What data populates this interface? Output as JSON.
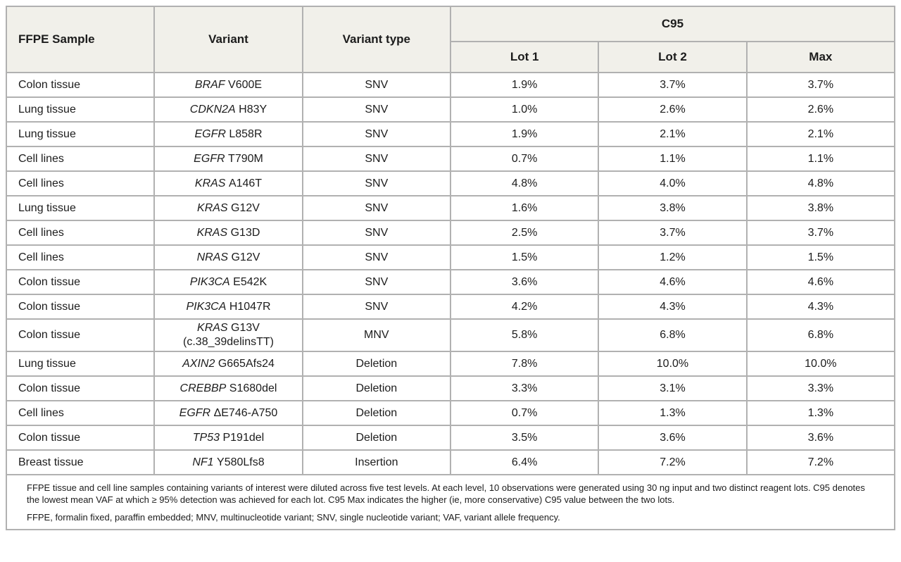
{
  "colors": {
    "header_background": "#f1f0ea",
    "border_inner": "#b1b1b1",
    "border_outer": "#8f8f8f",
    "text": "#1c1c1c"
  },
  "table": {
    "headers": {
      "ffpe_sample": "FFPE Sample",
      "variant": "Variant",
      "variant_type": "Variant type",
      "c95_group": "C95",
      "lot1": "Lot 1",
      "lot2": "Lot 2",
      "max": "Max"
    },
    "rows": [
      {
        "sample": "Colon tissue",
        "gene": "BRAF",
        "mutation": "V600E",
        "type": "SNV",
        "lot1": "1.9%",
        "lot2": "3.7%",
        "max": "3.7%"
      },
      {
        "sample": "Lung tissue",
        "gene": "CDKN2A",
        "mutation": "H83Y",
        "type": "SNV",
        "lot1": "1.0%",
        "lot2": "2.6%",
        "max": "2.6%"
      },
      {
        "sample": "Lung tissue",
        "gene": "EGFR",
        "mutation": "L858R",
        "type": "SNV",
        "lot1": "1.9%",
        "lot2": "2.1%",
        "max": "2.1%"
      },
      {
        "sample": "Cell lines",
        "gene": "EGFR",
        "mutation": "T790M",
        "type": "SNV",
        "lot1": "0.7%",
        "lot2": "1.1%",
        "max": "1.1%"
      },
      {
        "sample": "Cell lines",
        "gene": "KRAS",
        "mutation": "A146T",
        "type": "SNV",
        "lot1": "4.8%",
        "lot2": "4.0%",
        "max": "4.8%"
      },
      {
        "sample": "Lung tissue",
        "gene": "KRAS",
        "mutation": "G12V",
        "type": "SNV",
        "lot1": "1.6%",
        "lot2": "3.8%",
        "max": "3.8%"
      },
      {
        "sample": "Cell lines",
        "gene": "KRAS",
        "mutation": "G13D",
        "type": "SNV",
        "lot1": "2.5%",
        "lot2": "3.7%",
        "max": "3.7%"
      },
      {
        "sample": "Cell lines",
        "gene": "NRAS",
        "mutation": "G12V",
        "type": "SNV",
        "lot1": "1.5%",
        "lot2": "1.2%",
        "max": "1.5%"
      },
      {
        "sample": "Colon tissue",
        "gene": "PIK3CA",
        "mutation": "E542K",
        "type": "SNV",
        "lot1": "3.6%",
        "lot2": "4.6%",
        "max": "4.6%"
      },
      {
        "sample": "Colon tissue",
        "gene": "PIK3CA",
        "mutation": "H1047R",
        "type": "SNV",
        "lot1": "4.2%",
        "lot2": "4.3%",
        "max": "4.3%"
      },
      {
        "sample": "Colon tissue",
        "gene": "KRAS",
        "mutation": "G13V",
        "mutation_line2": "(c.38_39delinsTT)",
        "type": "MNV",
        "lot1": "5.8%",
        "lot2": "6.8%",
        "max": "6.8%"
      },
      {
        "sample": "Lung tissue",
        "gene": "AXIN2",
        "mutation": "G665Afs24",
        "type": "Deletion",
        "lot1": "7.8%",
        "lot2": "10.0%",
        "max": "10.0%"
      },
      {
        "sample": "Colon tissue",
        "gene": "CREBBP",
        "mutation": "S1680del",
        "type": "Deletion",
        "lot1": "3.3%",
        "lot2": "3.1%",
        "max": "3.3%"
      },
      {
        "sample": "Cell lines",
        "gene": "EGFR",
        "mutation": "ΔE746-A750",
        "type": "Deletion",
        "lot1": "0.7%",
        "lot2": "1.3%",
        "max": "1.3%"
      },
      {
        "sample": "Colon tissue",
        "gene": "TP53",
        "mutation": "P191del",
        "type": "Deletion",
        "lot1": "3.5%",
        "lot2": "3.6%",
        "max": "3.6%"
      },
      {
        "sample": "Breast tissue",
        "gene": "NF1",
        "mutation": "Y580Lfs8",
        "type": "Insertion",
        "lot1": "6.4%",
        "lot2": "7.2%",
        "max": "7.2%"
      }
    ],
    "footnotes": [
      "FFPE tissue and cell line samples containing variants of interest were diluted across five test levels. At each level, 10 observations were generated using 30 ng input and two distinct reagent lots. C95 denotes the lowest mean VAF at which ≥ 95% detection was achieved for each lot. C95 Max indicates the higher (ie, more conservative) C95 value between the two lots.",
      "FFPE, formalin fixed, paraffin embedded; MNV, multinucleotide variant; SNV, single nucleotide variant; VAF, variant allele frequency."
    ]
  }
}
